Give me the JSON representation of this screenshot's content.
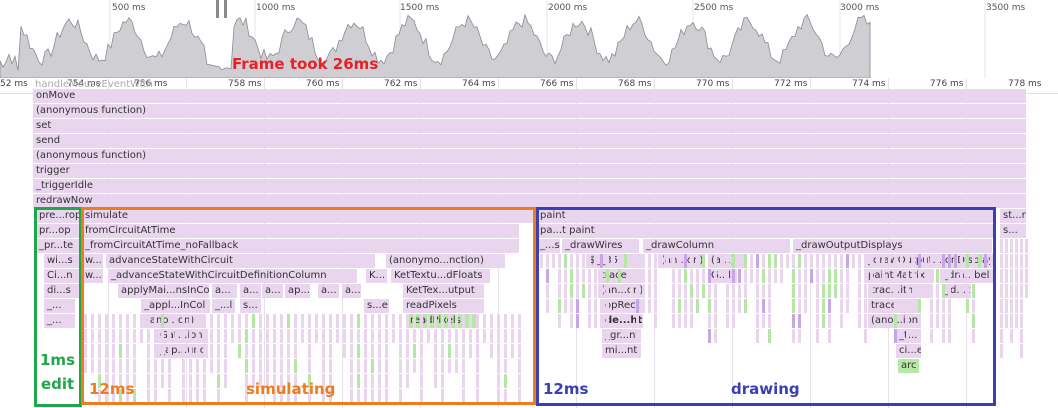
{
  "overview": {
    "ticks": [
      "500 ms",
      "1000 ms",
      "1500 ms",
      "2000 ms",
      "2500 ms",
      "3000 ms",
      "3500 ms"
    ]
  },
  "ruler": {
    "ticks": [
      "52 ms",
      "754 ms",
      "756 ms",
      "758 ms",
      "760 ms",
      "762 ms",
      "764 ms",
      "766 ms",
      "768 ms",
      "770 ms",
      "772 ms",
      "774 ms",
      "776 ms",
      "778 ms"
    ]
  },
  "flame": {
    "faded_top_label": "handleMouseEventWith",
    "rows": [
      "onMove",
      "(anonymous function)",
      "set",
      "send",
      "(anonymous function)",
      "trigger",
      "_triggerIdle",
      "redrawNow"
    ],
    "edit": [
      "pre...rop",
      "pr...op",
      "_pr...te",
      "wi...s",
      "Ci...n",
      "di...s",
      "_...",
      "_..."
    ],
    "sim": {
      "l1": "simulate",
      "l2": "fromCircuitAtTime",
      "l3": "_fromCircuitAtTime_noFallback",
      "l4a": "w...",
      "l4b": "advanceStateWithCircuit",
      "l4c": "(anonymo...nction)",
      "l5a": "w...",
      "l5b": "_advanceStateWithCircuitDefinitionColumn",
      "l5c": "K...",
      "l5d": "KetTextu...dFloats",
      "l6a": "applyMai...nsInCol",
      "l6b": "a...",
      "l6c": "a...",
      "l6d": "a...",
      "l6e": "ap...",
      "l6f": "a...",
      "l6g": "a...",
      "l6h": "KetTex...utput",
      "l7a": "_appl...InCol",
      "l7b": "_...l",
      "l7c": "s...",
      "l7d": "s...e",
      "l7e": "readPixels",
      "l8a": "(ano...on)",
      "l8b": "readPixels",
      "l9": "Gat...ion",
      "l10": "_ap...unc"
    },
    "draw": {
      "paint": "paint",
      "paint2": "pa...t paint",
      "drawWires_a": "_...s",
      "drawWires": "_drawWires",
      "drawColumn": "_drawColumn",
      "drawOutputDisplays": "_drawOutputDisplays",
      "r4a": "$__35",
      "r4b": "(an...on)",
      "r4c": "(a...)",
      "r4d": "_drawOutput...ionDisplay",
      "r5a": "trace",
      "r5b": "G...l",
      "r5c": "paintMatrix",
      "r5d": "_dra...bels",
      "r6a": "(an...on)",
      "r6b": "trac...ith",
      "r6c": "_d...t",
      "r7a": "opRect",
      "r7b": "trace",
      "r8a": "de...ht",
      "r8b": "(ano...ion)",
      "r9a": "_gr...nt",
      "r9b": "_t...e",
      "r10a": "mi...nt",
      "r10b": "ci...e",
      "r11": "arc"
    },
    "right": {
      "a": "st...n",
      "b": "s..."
    }
  },
  "annotations": {
    "frame": "Frame took 26ms",
    "edit_time": "1ms",
    "edit_label": "edit",
    "sim_time": "12ms",
    "sim_label": "simulating",
    "draw_time": "12ms",
    "draw_label": "drawing"
  },
  "colors": {
    "frame": "#e8202a",
    "edit": "#21a64a",
    "sim": "#ef7b1f",
    "draw": "#3a3fb4",
    "bar": "#e9d5ee",
    "green_bar": "#b6eaa4"
  }
}
